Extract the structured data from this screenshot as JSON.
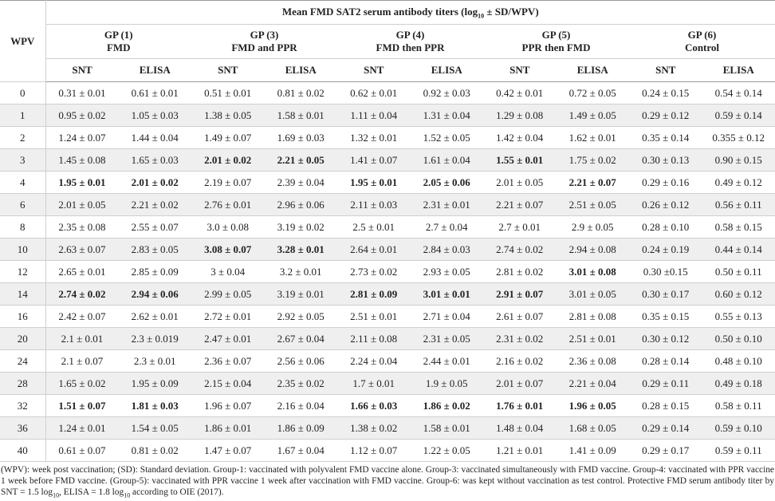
{
  "title": [
    "Mean FMD SAT2 serum antibody titers (log",
    "10",
    " ± SD/WPV)"
  ],
  "corner": "WPV",
  "groups": [
    [
      "GP (1)",
      "FMD"
    ],
    [
      "GP (3)",
      "FMD and PPR"
    ],
    [
      "GP (4)",
      "FMD then PPR"
    ],
    [
      "GP (5)",
      "PPR then FMD"
    ],
    [
      "GP (6)",
      "Control"
    ]
  ],
  "subheaders": [
    "SNT",
    "ELISA",
    "SNT",
    "ELISA",
    "SNT",
    "ELISA",
    "SNT",
    "ELISA",
    "SNT",
    "ELISA"
  ],
  "rows": [
    {
      "wpv": "0",
      "cells": [
        "0.31 ± 0.01",
        "0.61 ± 0.01",
        "0.51 ± 0.01",
        "0.81 ± 0.02",
        "0.62 ± 0.01",
        "0.92 ± 0.03",
        "0.42 ± 0.01",
        "0.72 ± 0.05",
        "0.24 ± 0.15",
        "0.54 ± 0.14"
      ]
    },
    {
      "wpv": "1",
      "cells": [
        "0.95 ± 0.02",
        "1.05 ± 0.03",
        "1.38 ± 0.05",
        "1.58 ± 0.01",
        "1.11 ± 0.04",
        "1.31 ± 0.04",
        "1.29 ± 0.08",
        "1.49 ± 0.05",
        "0.29 ± 0.12",
        "0.59 ± 0.14"
      ]
    },
    {
      "wpv": "2",
      "cells": [
        "1.24 ± 0.07",
        "1.44 ± 0.04",
        "1.49 ± 0.07",
        "1.69 ± 0.03",
        "1.32 ± 0.01",
        "1.52 ± 0.05",
        "1.42 ± 0.04",
        "1.62 ± 0.01",
        "0.35 ± 0.14",
        "0.355 ± 0.12"
      ]
    },
    {
      "wpv": "3",
      "cells": [
        "1.45 ± 0.08",
        "1.65 ± 0.03",
        {
          "text": "2.01 ± 0.02",
          "bold": true
        },
        {
          "text": "2.21 ± 0.05",
          "bold": true
        },
        "1.41 ± 0.07",
        "1.61 ± 0.04",
        {
          "text": "1.55 ± 0.01",
          "bold": true
        },
        "1.75 ± 0.02",
        "0.30 ± 0.13",
        "0.90 ± 0.15"
      ]
    },
    {
      "wpv": "4",
      "cells": [
        {
          "text": "1.95 ± 0.01",
          "bold": true
        },
        {
          "text": "2.01 ± 0.02",
          "bold": true
        },
        "2.19 ± 0.07",
        "2.39 ± 0.04",
        {
          "text": "1.95 ± 0.01",
          "bold": true
        },
        {
          "text": "2.05 ± 0.06",
          "bold": true
        },
        "2.01 ± 0.05",
        {
          "text": "2.21 ± 0.07",
          "bold": true
        },
        "0.29 ± 0.16",
        "0.49 ± 0.12"
      ]
    },
    {
      "wpv": "6",
      "cells": [
        "2.01 ± 0.05",
        "2.21 ± 0.02",
        "2.76 ± 0.01",
        "2.96 ± 0.06",
        "2.11 ± 0.03",
        "2.31 ± 0.01",
        "2.21 ± 0.07",
        "2.51 ± 0.05",
        "0.26 ± 0.12",
        "0.56 ± 0.11"
      ]
    },
    {
      "wpv": "8",
      "cells": [
        "2.35 ± 0.08",
        "2.55 ± 0.07",
        "3.0 ± 0.08",
        "3.19 ± 0.02",
        "2.5 ± 0.01",
        "2.7 ± 0.04",
        "2.7 ± 0.01",
        "2.9 ± 0.05",
        "0.28 ± 0.10",
        "0.58 ± 0.15"
      ]
    },
    {
      "wpv": "10",
      "cells": [
        "2.63 ± 0.07",
        "2.83 ± 0.05",
        {
          "text": "3.08 ± 0.07",
          "bold": true
        },
        {
          "text": "3.28 ± 0.01",
          "bold": true
        },
        "2.64 ± 0.01",
        "2.84 ± 0.03",
        "2.74 ± 0.02",
        "2.94 ± 0.08",
        "0.24 ± 0.19",
        "0.44 ± 0.14"
      ]
    },
    {
      "wpv": "12",
      "cells": [
        "2.65 ± 0.01",
        "2.85 ± 0.09",
        "3 ± 0.04",
        "3.2 ± 0.01",
        "2.73 ± 0.02",
        "2.93 ± 0.05",
        "2.81 ± 0.02",
        {
          "text": "3.01 ± 0.08",
          "bold": true
        },
        "0.30 ±0.15",
        "0.50 ± 0.11"
      ]
    },
    {
      "wpv": "14",
      "cells": [
        {
          "text": "2.74 ± 0.02",
          "bold": true
        },
        {
          "text": "2.94 ± 0.06",
          "bold": true
        },
        "2.99 ± 0.05",
        "3.19 ± 0.01",
        {
          "text": "2.81 ± 0.09",
          "bold": true
        },
        {
          "text": "3.01 ± 0.01",
          "bold": true
        },
        {
          "text": "2.91 ± 0.07",
          "bold": true
        },
        "3.01 ± 0.05",
        "0.30 ± 0.17",
        "0.60 ± 0.12"
      ]
    },
    {
      "wpv": "16",
      "cells": [
        "2.42 ± 0.07",
        "2.62 ± 0.01",
        "2.72 ± 0.01",
        "2.92 ± 0.05",
        "2.51 ± 0.01",
        "2.71 ± 0.04",
        "2.61 ± 0.07",
        "2.81 ± 0.08",
        "0.35 ± 0.15",
        "0.55 ± 0.13"
      ]
    },
    {
      "wpv": "20",
      "cells": [
        "2.1 ± 0.01",
        "2.3 ± 0.019",
        "2.47 ± 0.01",
        "2.67 ± 0.04",
        "2.11 ± 0.08",
        "2.31 ± 0.05",
        "2.31 ± 0.02",
        "2.51 ± 0.01",
        "0.30 ± 0.12",
        "0.50 ± 0.10"
      ]
    },
    {
      "wpv": "24",
      "cells": [
        "2.1 ± 0.07",
        "2.3 ± 0.01",
        "2.36 ± 0.07",
        "2.56 ± 0.06",
        "2.24 ± 0.04",
        "2.44 ± 0.01",
        "2.16 ± 0.02",
        "2.36 ± 0.08",
        "0.28 ± 0.14",
        "0.48 ± 0.10"
      ]
    },
    {
      "wpv": "28",
      "cells": [
        "1.65 ± 0.02",
        "1.95 ± 0.09",
        "2.15 ± 0.04",
        "2.35 ± 0.02",
        "1.7 ± 0.01",
        "1.9 ± 0.05",
        "2.01 ± 0.07",
        "2.21 ± 0.04",
        "0.29 ± 0.11",
        "0.49 ± 0.18"
      ]
    },
    {
      "wpv": "32",
      "cells": [
        {
          "text": "1.51 ± 0.07",
          "bold": true
        },
        {
          "text": "1.81 ± 0.03",
          "bold": true
        },
        "1.96 ± 0.07",
        "2.16 ± 0.04",
        {
          "text": "1.66 ± 0.03",
          "bold": true
        },
        {
          "text": "1.86 ± 0.02",
          "bold": true
        },
        {
          "text": "1.76 ± 0.01",
          "bold": true
        },
        {
          "text": "1.96 ± 0.05",
          "bold": true
        },
        "0.28 ± 0.15",
        "0.58 ± 0.11"
      ]
    },
    {
      "wpv": "36",
      "cells": [
        "1.24 ± 0.01",
        "1.54 ± 0.05",
        "1.86 ± 0.01",
        "1.86 ± 0.09",
        "1.38 ± 0.02",
        "1.58 ± 0.01",
        "1.48 ± 0.04",
        "1.68 ± 0.05",
        "0.29 ± 0.14",
        "0.59 ± 0.10"
      ]
    },
    {
      "wpv": "40",
      "cells": [
        "0.61 ± 0.07",
        "0.81 ± 0.02",
        "1.47 ± 0.07",
        "1.67 ± 0.04",
        "1.12 ± 0.07",
        "1.22 ± 0.05",
        "1.21 ± 0.01",
        "1.41 ± 0.09",
        "0.29 ± 0.17",
        "0.59 ± 0.11"
      ]
    }
  ],
  "footnote": [
    "(WPV): week post vaccination; (SD): Standard deviation. Group-1: vaccinated with polyvalent FMD vaccine alone. Group-3: vaccinated simultaneously with FMD vaccine. Group-4: vaccinated with PPR vaccine 1 week before FMD vaccine. (Group-5): vaccinated with PPR vaccine 1 week after vaccination with FMD vaccine. Group-6: was kept without vaccination as test control. Protective FMD serum antibody titer by SNT = 1.5 log",
    "10",
    ", ELISA = 1.8 log",
    "10",
    " according to OIE (2017)."
  ]
}
